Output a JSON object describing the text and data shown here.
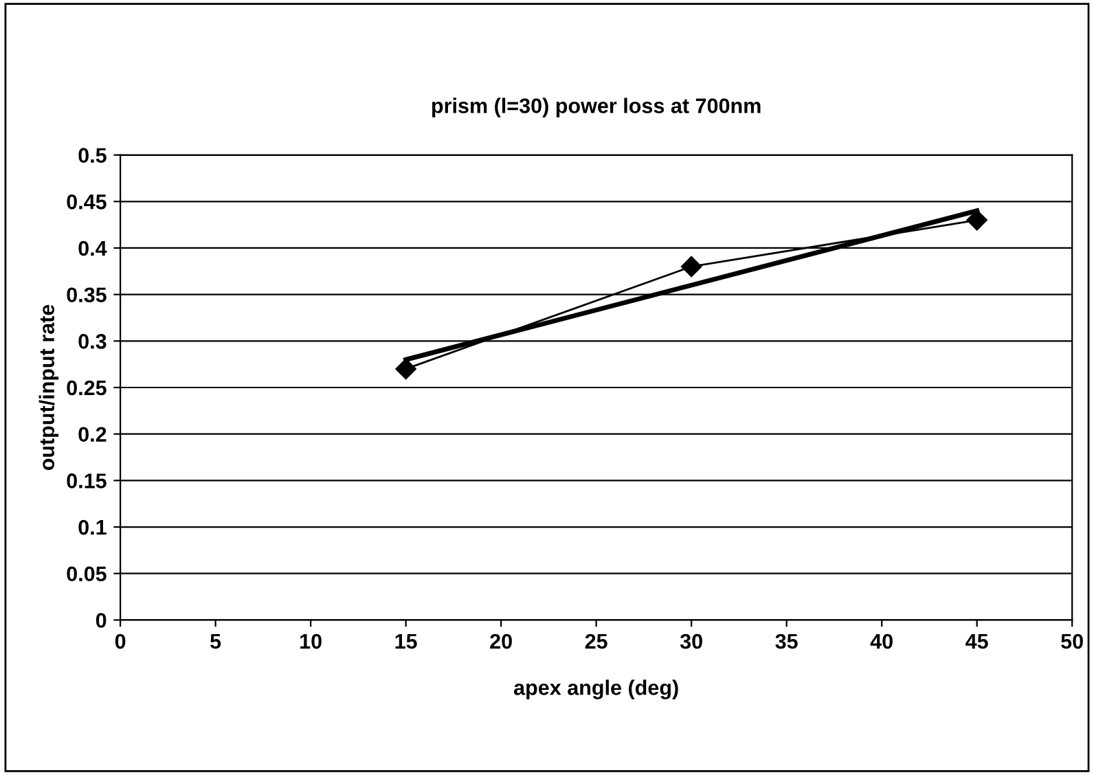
{
  "chart_data": {
    "type": "line",
    "title": "prism (l=30) power loss at 700nm",
    "xlabel": "apex angle (deg)",
    "ylabel": "output/input rate",
    "series": [
      {
        "color": "#000000",
        "x": [
          15,
          30,
          45
        ],
        "values": [
          0.27,
          0.38,
          0.43
        ],
        "marker": "diamond"
      },
      {
        "color": "#000000",
        "x": [
          15,
          45
        ],
        "values": [
          0.28,
          0.44
        ],
        "marker": "none"
      }
    ],
    "xlim": [
      0,
      50
    ],
    "xticks": [
      0,
      5,
      10,
      15,
      20,
      25,
      30,
      35,
      40,
      45,
      50
    ],
    "ylim": [
      0,
      0.5
    ],
    "yticks": [
      0,
      0.05,
      0.1,
      0.15,
      0.2,
      0.25,
      0.3,
      0.35,
      0.4,
      0.45,
      0.5
    ],
    "grid": "y",
    "legend": false
  }
}
